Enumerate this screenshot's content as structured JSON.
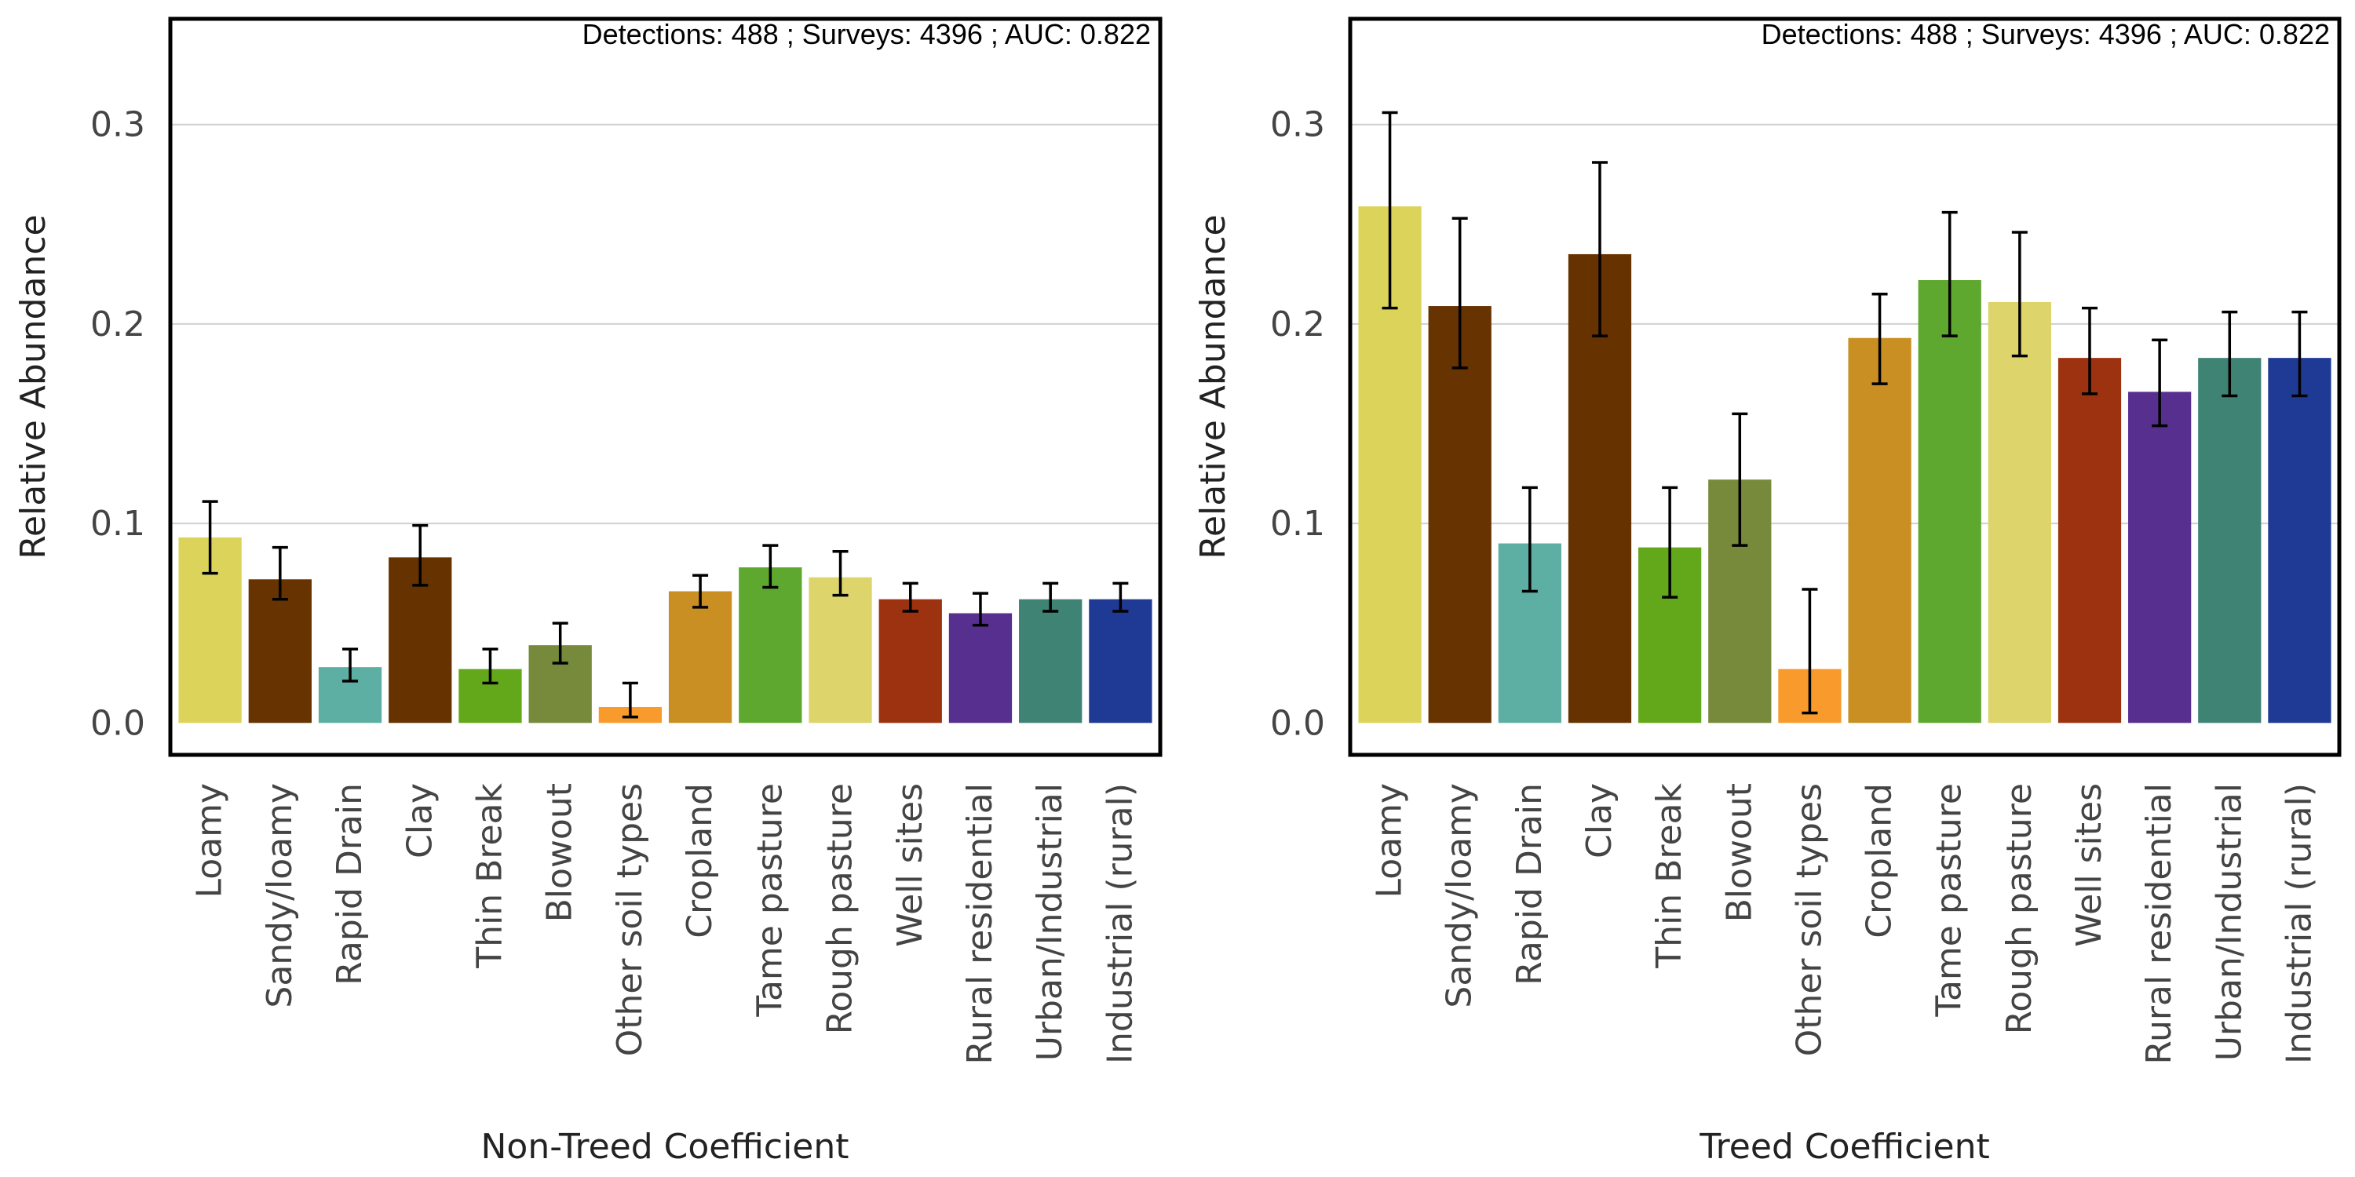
{
  "chart_data": [
    {
      "type": "bar",
      "title": "",
      "xlabel": "Non-Treed Coefficient",
      "ylabel": "Relative Abundance",
      "annotation": "Detections: 488 ; Surveys: 4396 ; AUC: 0.822",
      "ylim": [
        -0.016,
        0.353
      ],
      "yticks": [
        "0.0",
        "0.1",
        "0.2",
        "0.3"
      ],
      "grid": true,
      "categories": [
        "Loamy",
        "Sandy/loamy",
        "Rapid Drain",
        "Clay",
        "Thin Break",
        "Blowout",
        "Other soil types",
        "Cropland",
        "Tame pasture",
        "Rough pasture",
        "Well sites",
        "Rural residential",
        "Urban/Industrial",
        "Industrial (rural)"
      ],
      "values": [
        0.093,
        0.072,
        0.028,
        0.083,
        0.027,
        0.039,
        0.008,
        0.066,
        0.078,
        0.073,
        0.062,
        0.055,
        0.062,
        0.062
      ],
      "lower": [
        0.075,
        0.062,
        0.021,
        0.069,
        0.02,
        0.03,
        0.003,
        0.058,
        0.068,
        0.064,
        0.056,
        0.049,
        0.056,
        0.056
      ],
      "upper": [
        0.111,
        0.088,
        0.037,
        0.099,
        0.037,
        0.05,
        0.02,
        0.074,
        0.089,
        0.086,
        0.07,
        0.065,
        0.07,
        0.07
      ],
      "colors": [
        "#dcd35a",
        "#673300",
        "#5eafa3",
        "#663300",
        "#63a81a",
        "#778a3b",
        "#f99a2c",
        "#c98f22",
        "#5fa82f",
        "#ddd46b",
        "#9c320f",
        "#572f8f",
        "#3f8375",
        "#1f3a95"
      ]
    },
    {
      "type": "bar",
      "title": "",
      "xlabel": "Treed Coefficient",
      "ylabel": "Relative Abundance",
      "annotation": "Detections: 488 ; Surveys: 4396 ; AUC: 0.822",
      "ylim": [
        -0.016,
        0.353
      ],
      "yticks": [
        "0.0",
        "0.1",
        "0.2",
        "0.3"
      ],
      "grid": true,
      "categories": [
        "Loamy",
        "Sandy/loamy",
        "Rapid Drain",
        "Clay",
        "Thin Break",
        "Blowout",
        "Other soil types",
        "Cropland",
        "Tame pasture",
        "Rough pasture",
        "Well sites",
        "Rural residential",
        "Urban/Industrial",
        "Industrial (rural)"
      ],
      "values": [
        0.259,
        0.209,
        0.09,
        0.235,
        0.088,
        0.122,
        0.027,
        0.193,
        0.222,
        0.211,
        0.183,
        0.166,
        0.183,
        0.183
      ],
      "lower": [
        0.208,
        0.178,
        0.066,
        0.194,
        0.063,
        0.089,
        0.005,
        0.17,
        0.194,
        0.184,
        0.165,
        0.149,
        0.164,
        0.164
      ],
      "upper": [
        0.306,
        0.253,
        0.118,
        0.281,
        0.118,
        0.155,
        0.067,
        0.215,
        0.256,
        0.246,
        0.208,
        0.192,
        0.206,
        0.206
      ],
      "colors": [
        "#dcd35a",
        "#673300",
        "#5eafa3",
        "#663300",
        "#63a81a",
        "#778a3b",
        "#f99a2c",
        "#c98f22",
        "#5fa82f",
        "#ddd46b",
        "#9c320f",
        "#572f8f",
        "#3f8375",
        "#1f3a95"
      ]
    }
  ]
}
